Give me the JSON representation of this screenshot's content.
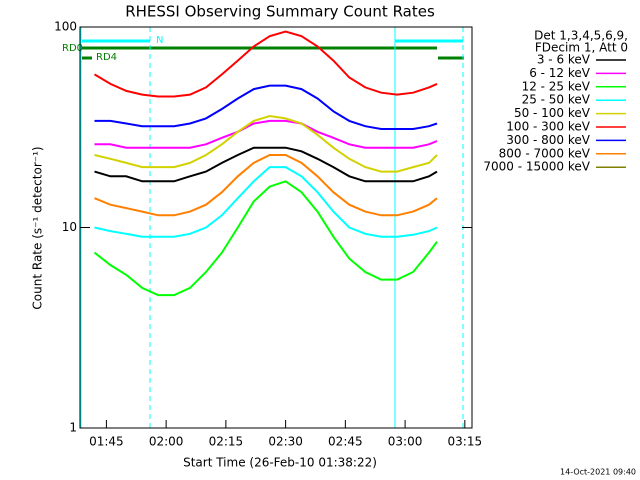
{
  "chart_data": {
    "type": "line",
    "title": "RHESSI Observing Summary Count Rates",
    "x_label": "Start Time (26-Feb-10 01:38:22)",
    "y_label": "Count Rate (s⁻¹ detector⁻¹)",
    "legend_header": [
      "Det 1,3,4,5,6,9,",
      "FDecim 1, Att 0"
    ],
    "timestamp": "14-Oct-2021 09:40",
    "annotations": [
      "RD0",
      "RD4",
      "N"
    ],
    "ylog": true,
    "ylim": [
      1,
      100
    ],
    "yticks": [
      1,
      10,
      100
    ],
    "xlim": [
      98.37,
      196.8
    ],
    "xticks": [
      {
        "value": 105,
        "label": "01:45"
      },
      {
        "value": 120,
        "label": "02:00"
      },
      {
        "value": 135,
        "label": "02:15"
      },
      {
        "value": 150,
        "label": "02:30"
      },
      {
        "value": 165,
        "label": "02:45"
      },
      {
        "value": 180,
        "label": "03:00"
      },
      {
        "value": 195,
        "label": "03:15"
      }
    ],
    "x": [
      102,
      106,
      110,
      114,
      118,
      122,
      126,
      130,
      134,
      138,
      142,
      146,
      150,
      154,
      158,
      162,
      166,
      170,
      174,
      178,
      182,
      186,
      188
    ],
    "series": [
      {
        "name": "3 - 6 keV",
        "color": "#000000",
        "values": [
          19,
          18,
          18,
          17,
          17,
          17,
          18,
          19,
          21,
          23,
          25,
          25,
          25,
          24,
          22,
          20,
          18,
          17,
          17,
          17,
          17,
          18,
          19
        ]
      },
      {
        "name": "6 - 12 keV",
        "color": "#ff00ff",
        "values": [
          26,
          26,
          25,
          25,
          25,
          25,
          25,
          26,
          28,
          30,
          33,
          34,
          34,
          33,
          30,
          28,
          26,
          25,
          25,
          25,
          25,
          26,
          27
        ]
      },
      {
        "name": "12 - 25 keV",
        "color": "#00ff00",
        "values": [
          7.5,
          6.5,
          5.8,
          5,
          4.6,
          4.6,
          5,
          6,
          7.5,
          10,
          13.5,
          16,
          17,
          15,
          12,
          9,
          7,
          6,
          5.5,
          5.5,
          6,
          7.5,
          8.5
        ]
      },
      {
        "name": "25 - 50 keV",
        "color": "#00ffff",
        "values": [
          10,
          9.6,
          9.3,
          9,
          9,
          9,
          9.3,
          10,
          11.5,
          14,
          17,
          20,
          20,
          18,
          15,
          12,
          10,
          9.3,
          9,
          9,
          9.2,
          9.6,
          10
        ]
      },
      {
        "name": "50 - 100 keV",
        "color": "#d2d200",
        "values": [
          23,
          22,
          21,
          20,
          20,
          20,
          21,
          23,
          26,
          30,
          34,
          36,
          35,
          33,
          29,
          25,
          22,
          20,
          19,
          19,
          20,
          21,
          23
        ]
      },
      {
        "name": "100 - 300 keV",
        "color": "#ff0000",
        "values": [
          58,
          52,
          48,
          46,
          45,
          45,
          46,
          50,
          58,
          68,
          80,
          90,
          95,
          90,
          80,
          68,
          56,
          50,
          47,
          46,
          47,
          50,
          52
        ]
      },
      {
        "name": "300 - 800 keV",
        "color": "#0000ff",
        "values": [
          34,
          34,
          33,
          32,
          32,
          32,
          33,
          35,
          39,
          44,
          49,
          51,
          51,
          49,
          44,
          38,
          34,
          32,
          31,
          31,
          31,
          32,
          33
        ]
      },
      {
        "name": "800 - 7000 keV",
        "color": "#ff8000",
        "values": [
          14,
          13,
          12.5,
          12,
          11.5,
          11.5,
          12,
          13,
          15,
          18,
          21,
          23,
          23,
          21,
          18,
          15,
          13,
          12,
          11.5,
          11.5,
          12,
          13,
          14
        ]
      },
      {
        "name": "7000 - 15000 keV",
        "color": "#808000",
        "values": [
          null,
          null,
          null,
          null,
          null,
          null,
          null,
          null,
          null,
          null,
          null,
          null,
          null,
          null,
          null,
          null,
          null,
          null,
          null,
          null,
          null,
          null,
          null
        ]
      }
    ]
  }
}
